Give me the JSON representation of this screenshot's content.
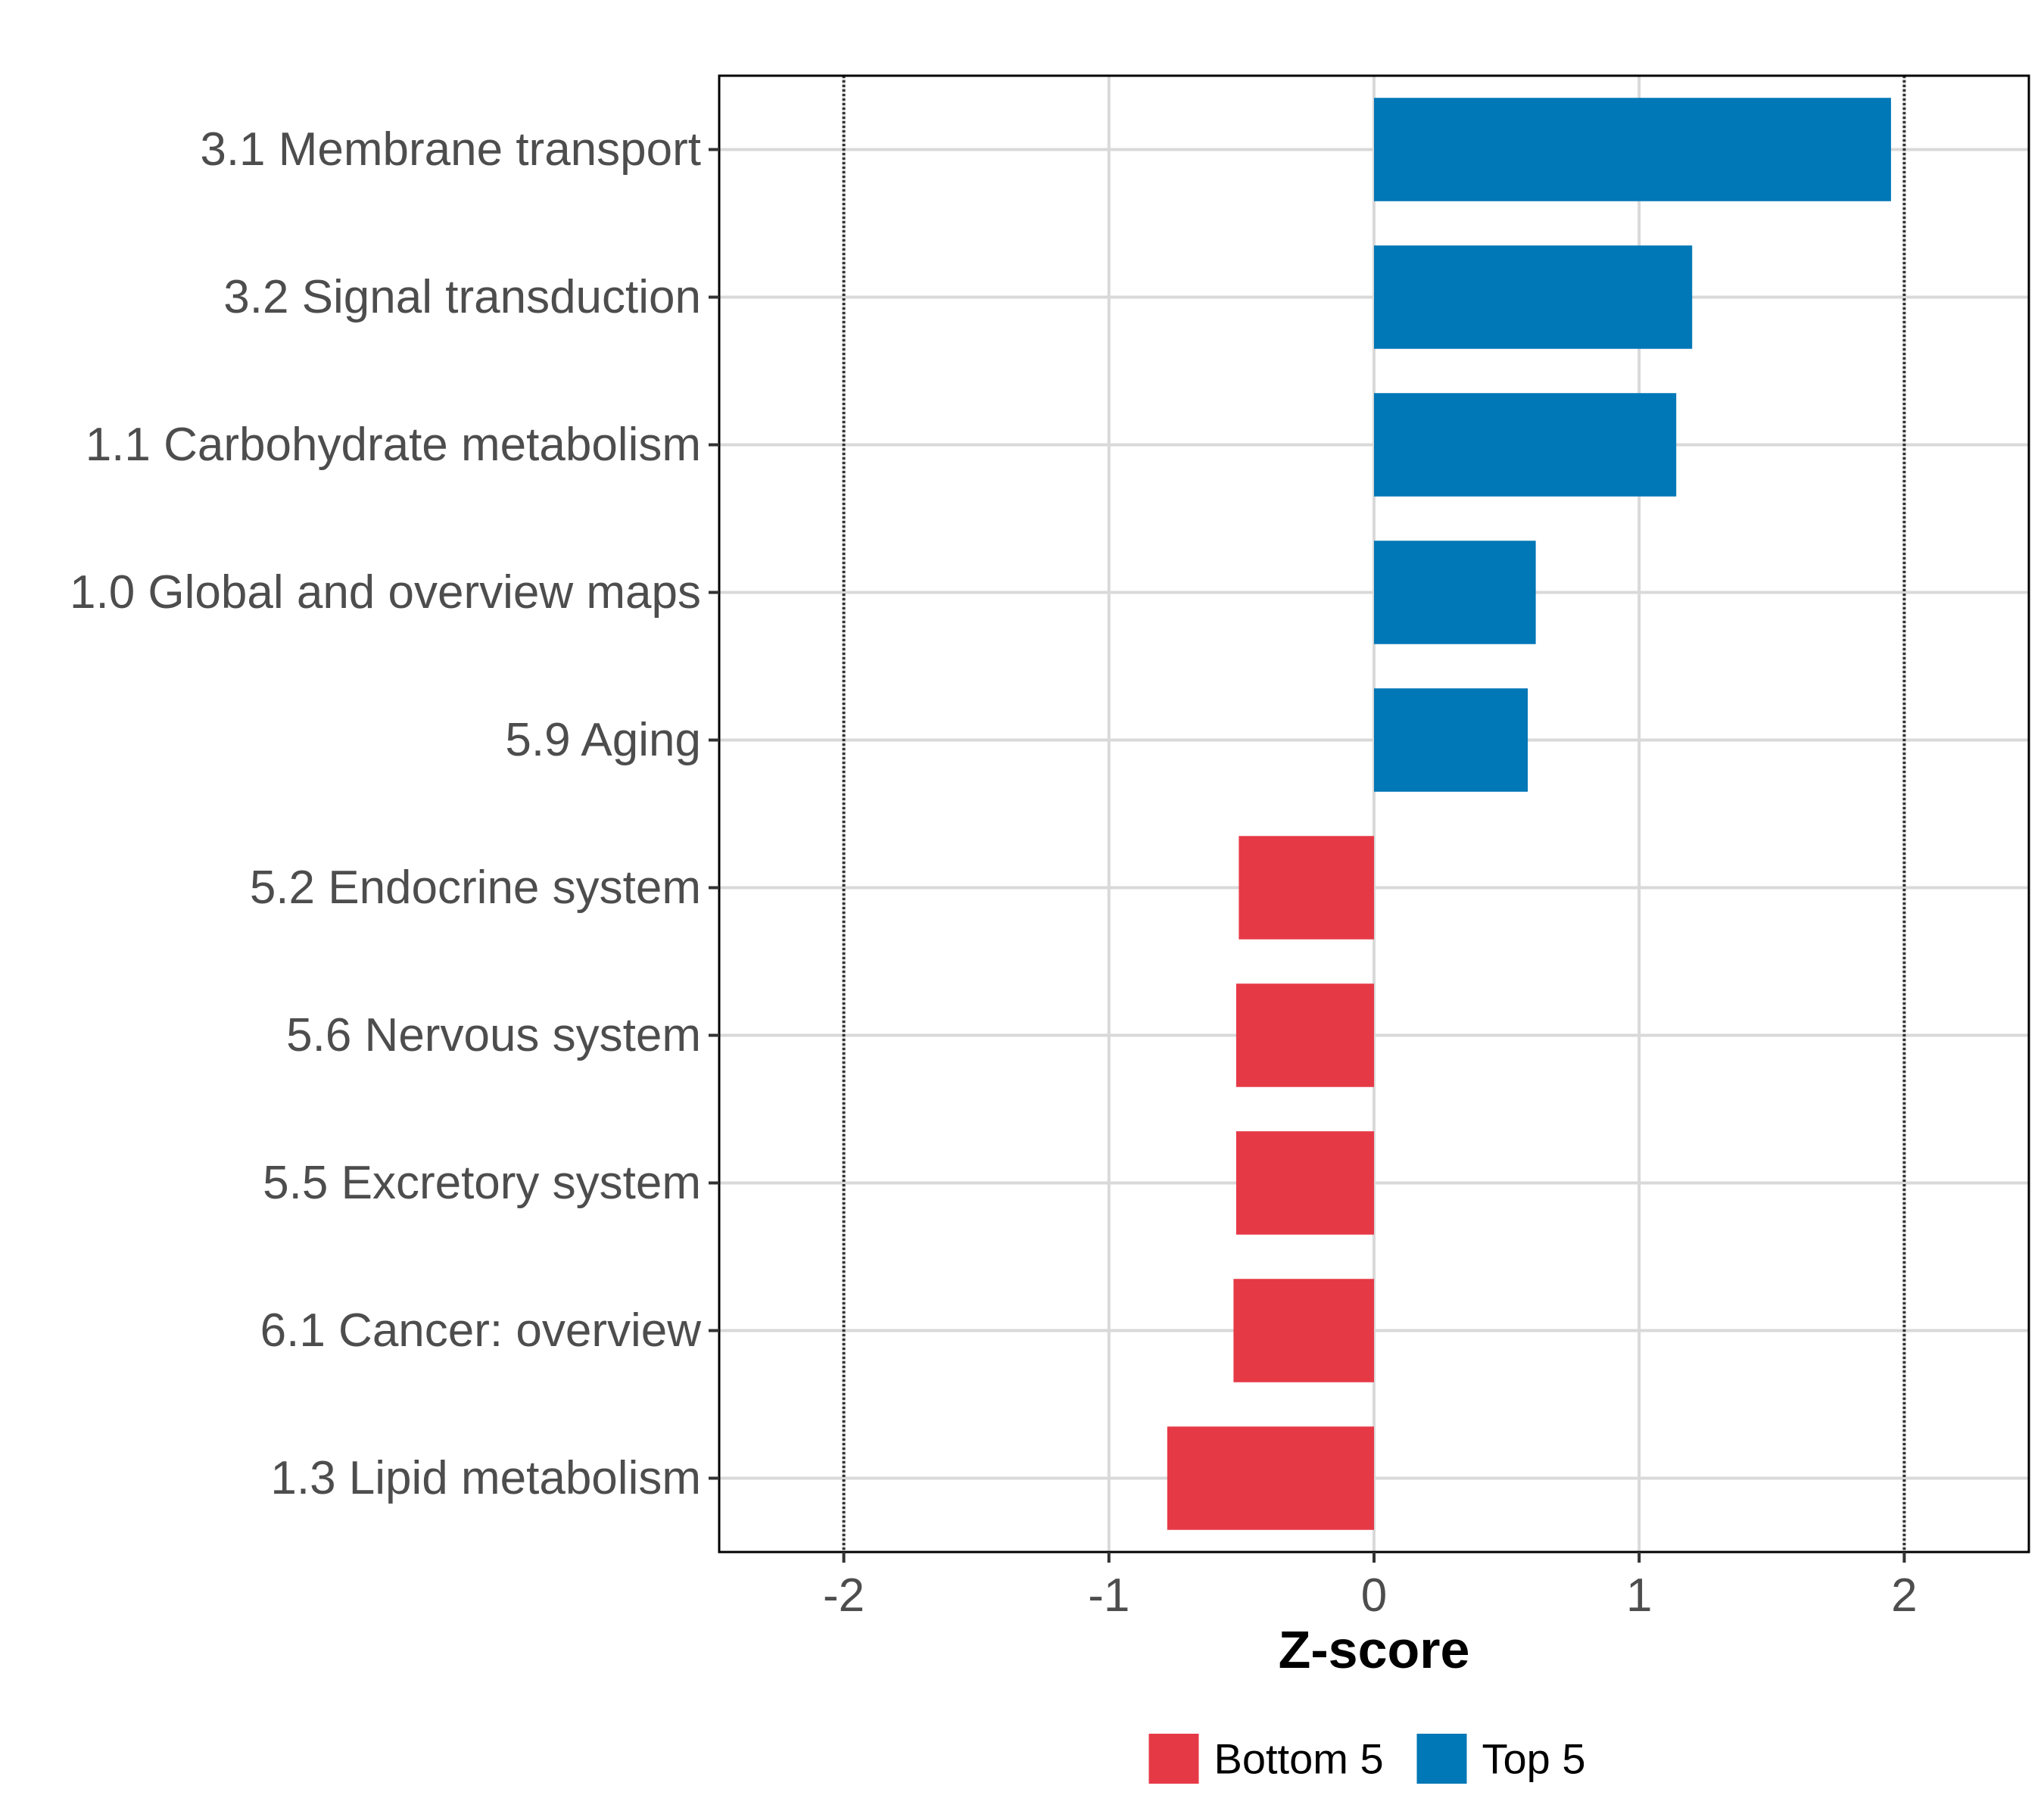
{
  "chart_data": {
    "type": "bar",
    "orientation": "horizontal",
    "categories": [
      "3.1 Membrane transport",
      "3.2 Signal transduction",
      "1.1 Carbohydrate metabolism",
      "1.0 Global and overview maps",
      "5.9 Aging",
      "5.2 Endocrine system",
      "5.6 Nervous system",
      "5.5 Excretory system",
      "6.1 Cancer: overview",
      "1.3 Lipid metabolism"
    ],
    "values": [
      1.95,
      1.2,
      1.14,
      0.61,
      0.58,
      -0.51,
      -0.52,
      -0.52,
      -0.53,
      -0.78
    ],
    "groups": [
      "Top 5",
      "Top 5",
      "Top 5",
      "Top 5",
      "Top 5",
      "Bottom 5",
      "Bottom 5",
      "Bottom 5",
      "Bottom 5",
      "Bottom 5"
    ],
    "xlabel": "Z-score",
    "ylabel": "",
    "xlim": [
      -2.47,
      2.47
    ],
    "xticks": [
      -2,
      -1,
      0,
      1,
      2
    ],
    "xtick_labels": [
      "-2",
      "-1",
      "0",
      "1",
      "2"
    ],
    "reference_lines": [
      -2,
      2
    ],
    "grid": true,
    "legend": {
      "position": "bottom",
      "entries": [
        {
          "label": "Bottom 5",
          "color": "#e63946"
        },
        {
          "label": "Top 5",
          "color": "#0077b6"
        }
      ]
    }
  }
}
